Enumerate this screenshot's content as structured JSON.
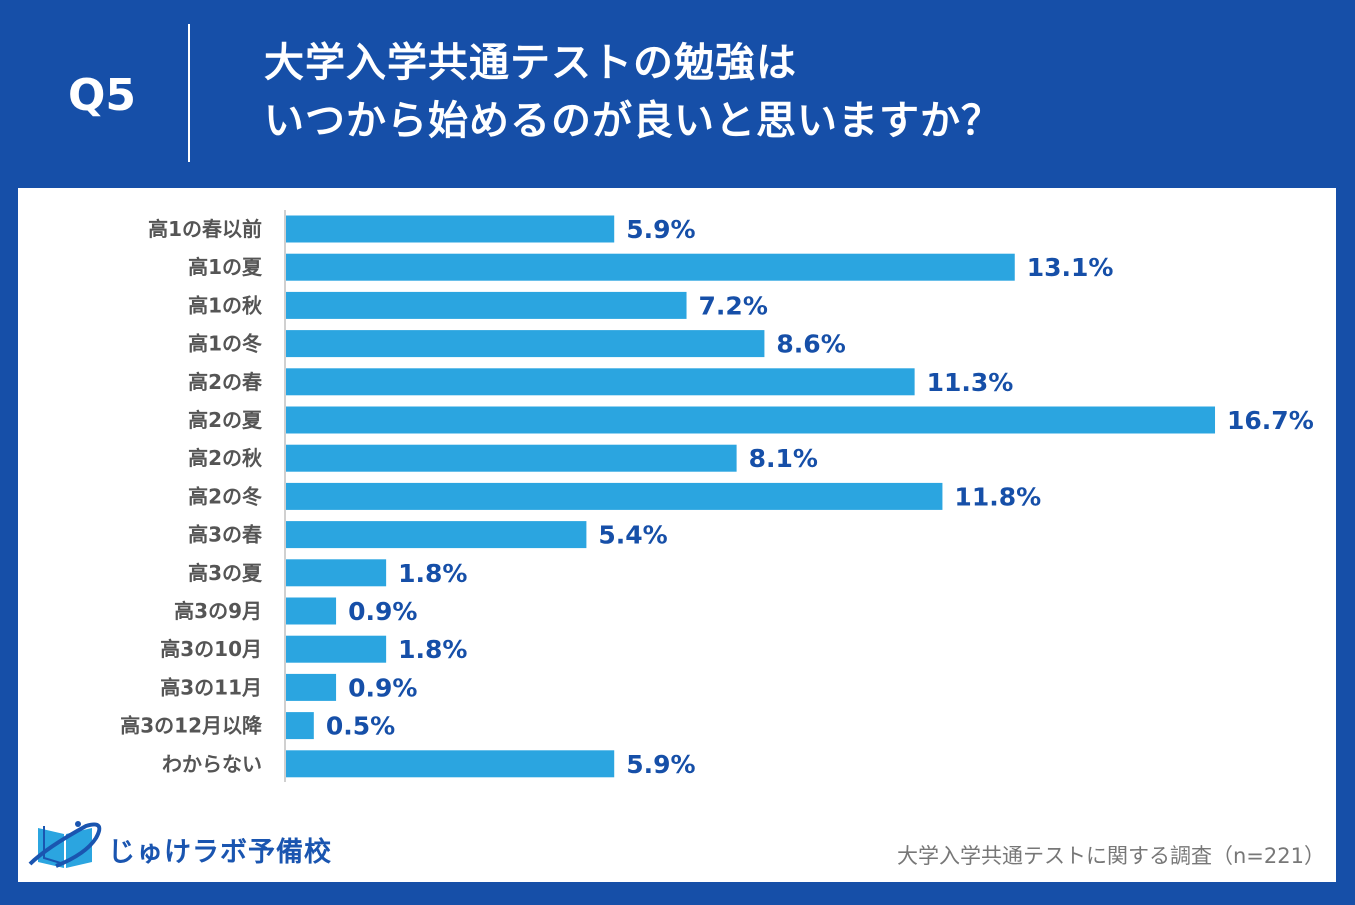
{
  "header": {
    "question_number": "Q5",
    "title_line1": "大学入学共通テストの勉強は",
    "title_line2": "いつから始めるのが良いと思いますか？"
  },
  "chart_data": {
    "type": "bar",
    "orientation": "horizontal",
    "categories": [
      "高1の春以前",
      "高1の夏",
      "高1の秋",
      "高1の冬",
      "高2の春",
      "高2の夏",
      "高2の秋",
      "高2の冬",
      "高3の春",
      "高3の夏",
      "高3の9月",
      "高3の10月",
      "高3の11月",
      "高3の12月以降",
      "わからない"
    ],
    "values": [
      5.9,
      13.1,
      7.2,
      8.6,
      11.3,
      16.7,
      8.1,
      11.8,
      5.4,
      1.8,
      0.9,
      1.8,
      0.9,
      0.5,
      5.9
    ],
    "value_labels": [
      "5.9%",
      "13.1%",
      "7.2%",
      "8.6%",
      "11.3%",
      "16.7%",
      "8.1%",
      "11.8%",
      "5.4%",
      "1.8%",
      "0.9%",
      "1.8%",
      "0.9%",
      "0.5%",
      "5.9%"
    ],
    "unit": "%",
    "grid": false,
    "bar_color": "#2ba5e0",
    "label_color": "#164fa8"
  },
  "footer": {
    "logo_text": "じゅけラボ予備校",
    "source": "大学入学共通テストに関する調査（n=221）"
  },
  "colors": {
    "background": "#164fa8",
    "panel": "#ffffff"
  }
}
